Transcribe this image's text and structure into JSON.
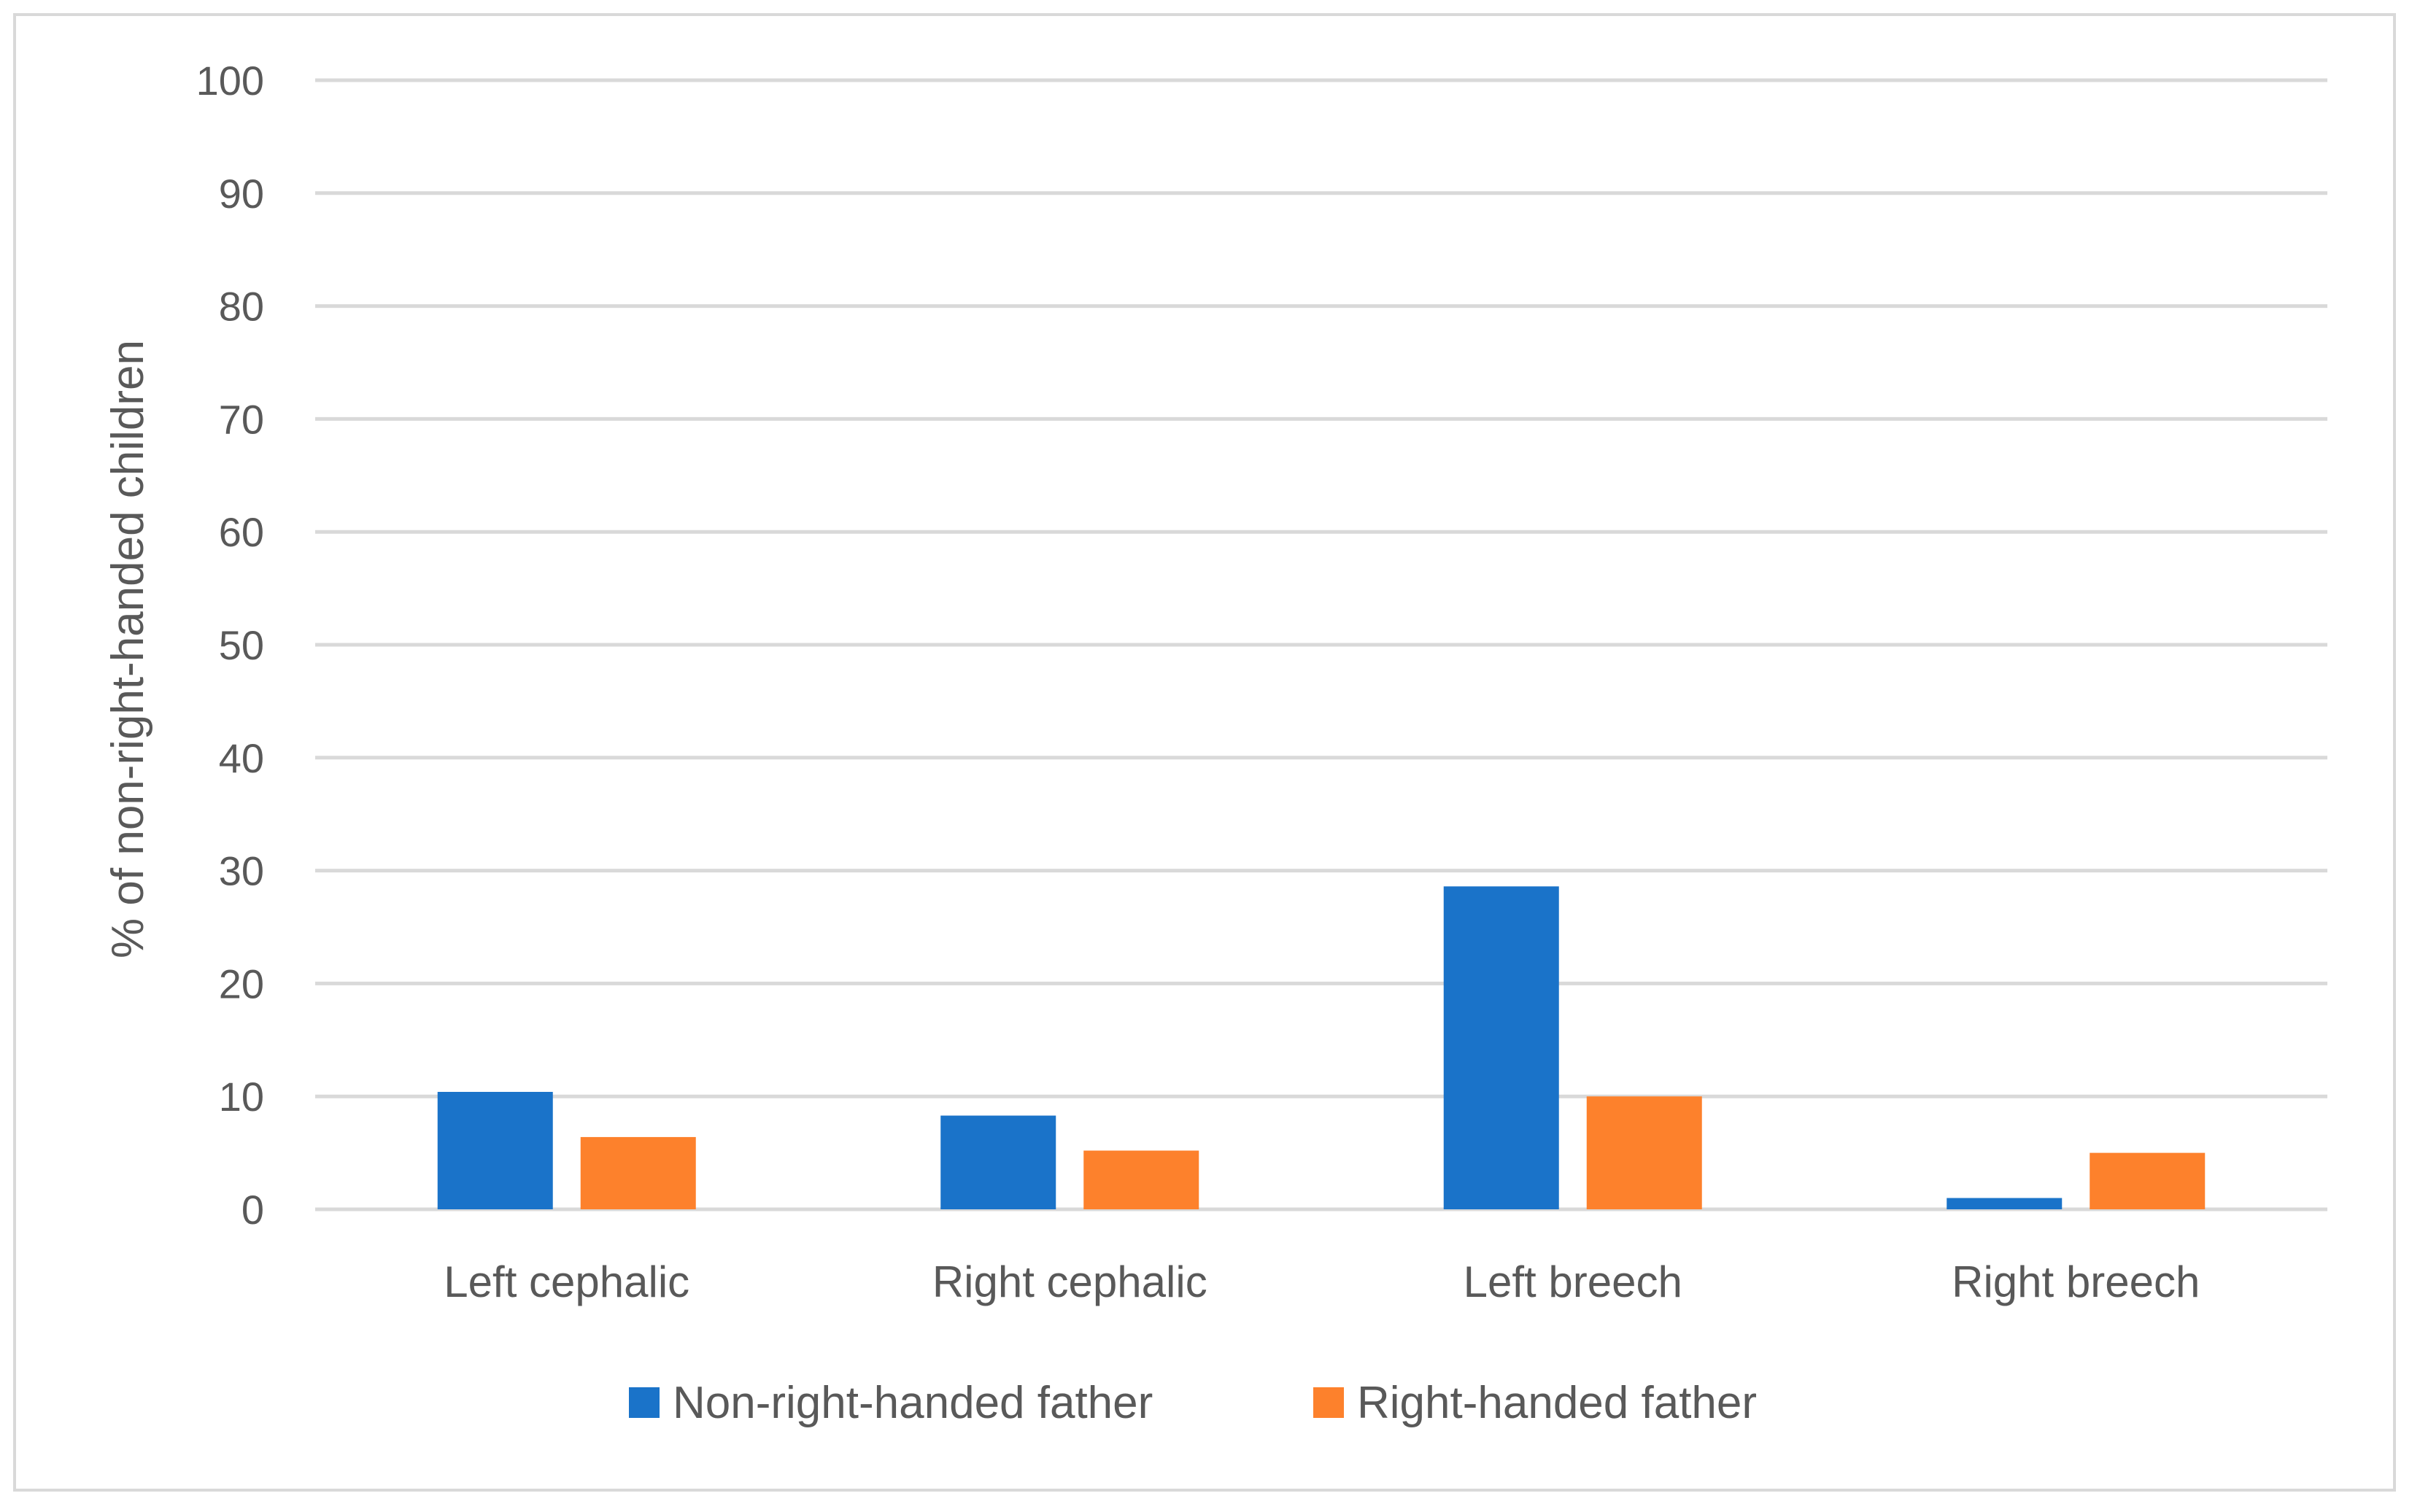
{
  "chart_data": {
    "type": "bar",
    "title": "",
    "xlabel": "",
    "ylabel": "% of non-right-handed children",
    "ylim": [
      0,
      100
    ],
    "yticks": [
      0,
      10,
      20,
      30,
      40,
      50,
      60,
      70,
      80,
      90,
      100
    ],
    "grid": true,
    "legend_position": "bottom",
    "categories": [
      "Left cephalic",
      "Right cephalic",
      "Left breech",
      "Right breech"
    ],
    "series": [
      {
        "name": "Non-right-handed father",
        "color": "#1a73c9",
        "values": [
          10.4,
          8.3,
          28.6,
          1.0
        ]
      },
      {
        "name": "Right-handed father",
        "color": "#fd812c",
        "values": [
          6.4,
          5.2,
          10.0,
          5.0
        ]
      }
    ]
  }
}
